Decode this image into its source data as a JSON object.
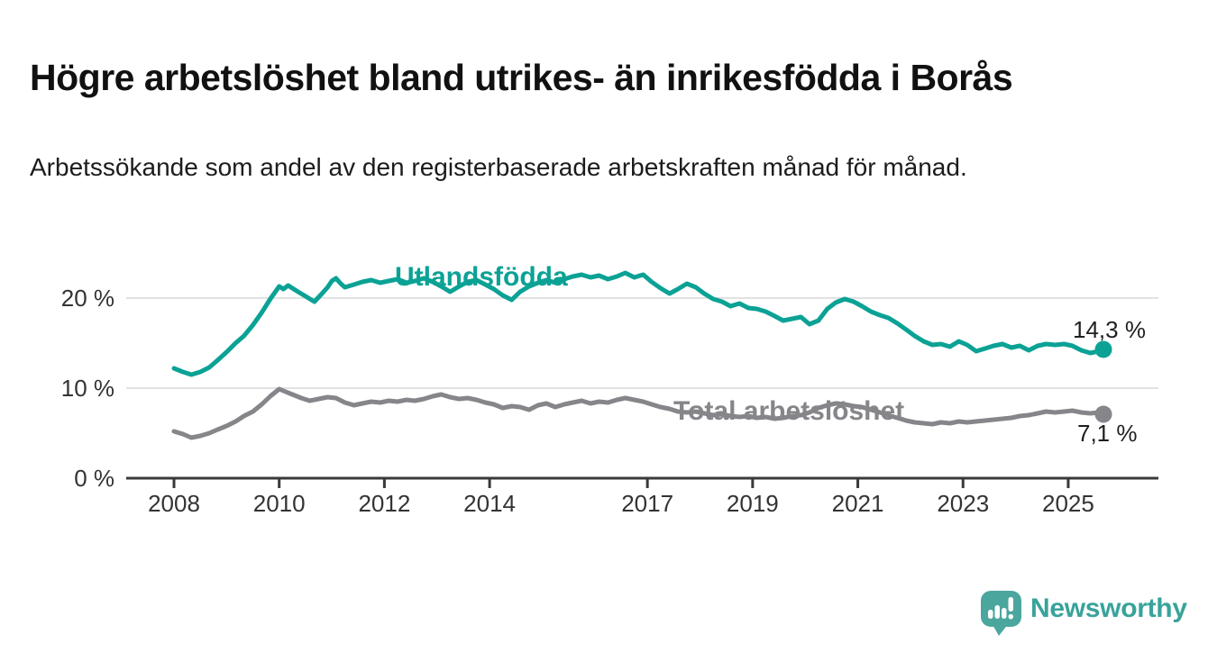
{
  "title": "Högre arbetslöshet bland utrikes- än inrikesfödda i Borås",
  "subtitle": "Arbetssökande som andel av den registerbaserade arbetskraften månad för månad.",
  "logo": {
    "text": "Newsworthy",
    "wordmark_color": "#38a39b",
    "icon_color": "#4ba69e"
  },
  "chart_data": {
    "type": "line",
    "unit": "%",
    "grid": "horizontal",
    "legend": "inline-labels",
    "x_axis": {
      "ticks": [
        2008,
        2010,
        2012,
        2014,
        2017,
        2019,
        2021,
        2023,
        2025
      ],
      "range": [
        2007.1,
        2026.7
      ]
    },
    "y_axis": {
      "ticks": [
        "0 %",
        "10 %",
        "20 %"
      ],
      "tick_values": [
        0,
        10,
        20
      ],
      "range": [
        0,
        24
      ]
    },
    "series": [
      {
        "name": "Utlandsfödda",
        "color": "#0ba295",
        "end_label": "14,3 %",
        "end_value": 14.3,
        "points": [
          [
            2008.0,
            12.2
          ],
          [
            2008.17,
            11.8
          ],
          [
            2008.33,
            11.5
          ],
          [
            2008.5,
            11.8
          ],
          [
            2008.67,
            12.3
          ],
          [
            2008.83,
            13.1
          ],
          [
            2009.0,
            14.0
          ],
          [
            2009.17,
            15.0
          ],
          [
            2009.33,
            15.8
          ],
          [
            2009.5,
            17.0
          ],
          [
            2009.67,
            18.4
          ],
          [
            2009.83,
            19.9
          ],
          [
            2010.0,
            21.3
          ],
          [
            2010.08,
            21.0
          ],
          [
            2010.17,
            21.4
          ],
          [
            2010.33,
            20.8
          ],
          [
            2010.5,
            20.2
          ],
          [
            2010.67,
            19.6
          ],
          [
            2010.83,
            20.6
          ],
          [
            2010.92,
            21.2
          ],
          [
            2011.0,
            21.9
          ],
          [
            2011.08,
            22.2
          ],
          [
            2011.17,
            21.6
          ],
          [
            2011.25,
            21.2
          ],
          [
            2011.42,
            21.5
          ],
          [
            2011.58,
            21.8
          ],
          [
            2011.75,
            22.0
          ],
          [
            2011.92,
            21.7
          ],
          [
            2012.08,
            21.9
          ],
          [
            2012.25,
            22.1
          ],
          [
            2012.42,
            21.7
          ],
          [
            2012.58,
            21.9
          ],
          [
            2012.75,
            22.2
          ],
          [
            2012.92,
            21.8
          ],
          [
            2013.08,
            21.3
          ],
          [
            2013.25,
            20.7
          ],
          [
            2013.42,
            21.3
          ],
          [
            2013.58,
            21.8
          ],
          [
            2013.75,
            22.0
          ],
          [
            2013.92,
            21.5
          ],
          [
            2014.08,
            21.0
          ],
          [
            2014.25,
            20.3
          ],
          [
            2014.42,
            19.8
          ],
          [
            2014.58,
            20.7
          ],
          [
            2014.75,
            21.3
          ],
          [
            2014.92,
            21.7
          ],
          [
            2015.08,
            22.0
          ],
          [
            2015.25,
            21.7
          ],
          [
            2015.42,
            22.1
          ],
          [
            2015.58,
            22.4
          ],
          [
            2015.75,
            22.6
          ],
          [
            2015.92,
            22.3
          ],
          [
            2016.08,
            22.5
          ],
          [
            2016.25,
            22.1
          ],
          [
            2016.42,
            22.4
          ],
          [
            2016.58,
            22.8
          ],
          [
            2016.75,
            22.3
          ],
          [
            2016.92,
            22.6
          ],
          [
            2017.08,
            21.8
          ],
          [
            2017.25,
            21.1
          ],
          [
            2017.42,
            20.5
          ],
          [
            2017.58,
            21.0
          ],
          [
            2017.75,
            21.6
          ],
          [
            2017.92,
            21.2
          ],
          [
            2018.08,
            20.5
          ],
          [
            2018.25,
            19.9
          ],
          [
            2018.42,
            19.6
          ],
          [
            2018.58,
            19.1
          ],
          [
            2018.75,
            19.4
          ],
          [
            2018.92,
            18.9
          ],
          [
            2019.08,
            18.8
          ],
          [
            2019.25,
            18.5
          ],
          [
            2019.42,
            18.0
          ],
          [
            2019.58,
            17.5
          ],
          [
            2019.75,
            17.7
          ],
          [
            2019.92,
            17.9
          ],
          [
            2020.08,
            17.1
          ],
          [
            2020.25,
            17.5
          ],
          [
            2020.42,
            18.8
          ],
          [
            2020.58,
            19.5
          ],
          [
            2020.75,
            19.9
          ],
          [
            2020.92,
            19.6
          ],
          [
            2021.08,
            19.1
          ],
          [
            2021.25,
            18.5
          ],
          [
            2021.42,
            18.1
          ],
          [
            2021.58,
            17.8
          ],
          [
            2021.75,
            17.2
          ],
          [
            2021.92,
            16.5
          ],
          [
            2022.08,
            15.8
          ],
          [
            2022.25,
            15.2
          ],
          [
            2022.42,
            14.8
          ],
          [
            2022.58,
            14.9
          ],
          [
            2022.75,
            14.6
          ],
          [
            2022.92,
            15.2
          ],
          [
            2023.08,
            14.8
          ],
          [
            2023.25,
            14.1
          ],
          [
            2023.42,
            14.4
          ],
          [
            2023.58,
            14.7
          ],
          [
            2023.75,
            14.9
          ],
          [
            2023.92,
            14.5
          ],
          [
            2024.08,
            14.7
          ],
          [
            2024.25,
            14.2
          ],
          [
            2024.42,
            14.7
          ],
          [
            2024.58,
            14.9
          ],
          [
            2024.75,
            14.8
          ],
          [
            2024.92,
            14.9
          ],
          [
            2025.08,
            14.7
          ],
          [
            2025.25,
            14.2
          ],
          [
            2025.42,
            13.9
          ],
          [
            2025.58,
            14.1
          ],
          [
            2025.67,
            14.3
          ]
        ]
      },
      {
        "name": "Total arbetslöshet",
        "color": "#85858a",
        "end_label": "7,1 %",
        "end_value": 7.1,
        "points": [
          [
            2008.0,
            5.2
          ],
          [
            2008.17,
            4.9
          ],
          [
            2008.33,
            4.5
          ],
          [
            2008.5,
            4.7
          ],
          [
            2008.67,
            5.0
          ],
          [
            2008.83,
            5.4
          ],
          [
            2009.0,
            5.8
          ],
          [
            2009.17,
            6.3
          ],
          [
            2009.33,
            6.9
          ],
          [
            2009.5,
            7.4
          ],
          [
            2009.67,
            8.2
          ],
          [
            2009.83,
            9.1
          ],
          [
            2010.0,
            9.9
          ],
          [
            2010.08,
            9.7
          ],
          [
            2010.25,
            9.3
          ],
          [
            2010.42,
            8.9
          ],
          [
            2010.58,
            8.6
          ],
          [
            2010.75,
            8.8
          ],
          [
            2010.92,
            9.0
          ],
          [
            2011.08,
            8.9
          ],
          [
            2011.25,
            8.4
          ],
          [
            2011.42,
            8.1
          ],
          [
            2011.58,
            8.3
          ],
          [
            2011.75,
            8.5
          ],
          [
            2011.92,
            8.4
          ],
          [
            2012.08,
            8.6
          ],
          [
            2012.25,
            8.5
          ],
          [
            2012.42,
            8.7
          ],
          [
            2012.58,
            8.6
          ],
          [
            2012.75,
            8.8
          ],
          [
            2012.92,
            9.1
          ],
          [
            2013.08,
            9.3
          ],
          [
            2013.25,
            9.0
          ],
          [
            2013.42,
            8.8
          ],
          [
            2013.58,
            8.9
          ],
          [
            2013.75,
            8.7
          ],
          [
            2013.92,
            8.4
          ],
          [
            2014.08,
            8.2
          ],
          [
            2014.25,
            7.8
          ],
          [
            2014.42,
            8.0
          ],
          [
            2014.58,
            7.9
          ],
          [
            2014.75,
            7.6
          ],
          [
            2014.92,
            8.1
          ],
          [
            2015.08,
            8.3
          ],
          [
            2015.25,
            7.9
          ],
          [
            2015.42,
            8.2
          ],
          [
            2015.58,
            8.4
          ],
          [
            2015.75,
            8.6
          ],
          [
            2015.92,
            8.3
          ],
          [
            2016.08,
            8.5
          ],
          [
            2016.25,
            8.4
          ],
          [
            2016.42,
            8.7
          ],
          [
            2016.58,
            8.9
          ],
          [
            2016.75,
            8.7
          ],
          [
            2016.92,
            8.5
          ],
          [
            2017.08,
            8.2
          ],
          [
            2017.25,
            7.9
          ],
          [
            2017.42,
            7.7
          ],
          [
            2017.58,
            7.4
          ],
          [
            2017.75,
            7.3
          ],
          [
            2017.92,
            7.4
          ],
          [
            2018.08,
            7.2
          ],
          [
            2018.25,
            7.0
          ],
          [
            2018.42,
            7.1
          ],
          [
            2018.58,
            6.9
          ],
          [
            2018.75,
            6.8
          ],
          [
            2018.92,
            6.9
          ],
          [
            2019.08,
            6.7
          ],
          [
            2019.25,
            6.8
          ],
          [
            2019.42,
            6.6
          ],
          [
            2019.58,
            6.7
          ],
          [
            2019.75,
            6.9
          ],
          [
            2019.92,
            7.0
          ],
          [
            2020.08,
            7.3
          ],
          [
            2020.25,
            7.8
          ],
          [
            2020.42,
            8.1
          ],
          [
            2020.58,
            8.3
          ],
          [
            2020.75,
            8.2
          ],
          [
            2020.92,
            8.0
          ],
          [
            2021.08,
            7.9
          ],
          [
            2021.25,
            7.6
          ],
          [
            2021.42,
            7.3
          ],
          [
            2021.58,
            7.0
          ],
          [
            2021.75,
            6.7
          ],
          [
            2021.92,
            6.4
          ],
          [
            2022.08,
            6.2
          ],
          [
            2022.25,
            6.1
          ],
          [
            2022.42,
            6.0
          ],
          [
            2022.58,
            6.2
          ],
          [
            2022.75,
            6.1
          ],
          [
            2022.92,
            6.3
          ],
          [
            2023.08,
            6.2
          ],
          [
            2023.25,
            6.3
          ],
          [
            2023.42,
            6.4
          ],
          [
            2023.58,
            6.5
          ],
          [
            2023.75,
            6.6
          ],
          [
            2023.92,
            6.7
          ],
          [
            2024.08,
            6.9
          ],
          [
            2024.25,
            7.0
          ],
          [
            2024.42,
            7.2
          ],
          [
            2024.58,
            7.4
          ],
          [
            2024.75,
            7.3
          ],
          [
            2024.92,
            7.4
          ],
          [
            2025.08,
            7.5
          ],
          [
            2025.25,
            7.3
          ],
          [
            2025.42,
            7.2
          ],
          [
            2025.58,
            7.3
          ],
          [
            2025.67,
            7.1
          ]
        ]
      }
    ]
  }
}
